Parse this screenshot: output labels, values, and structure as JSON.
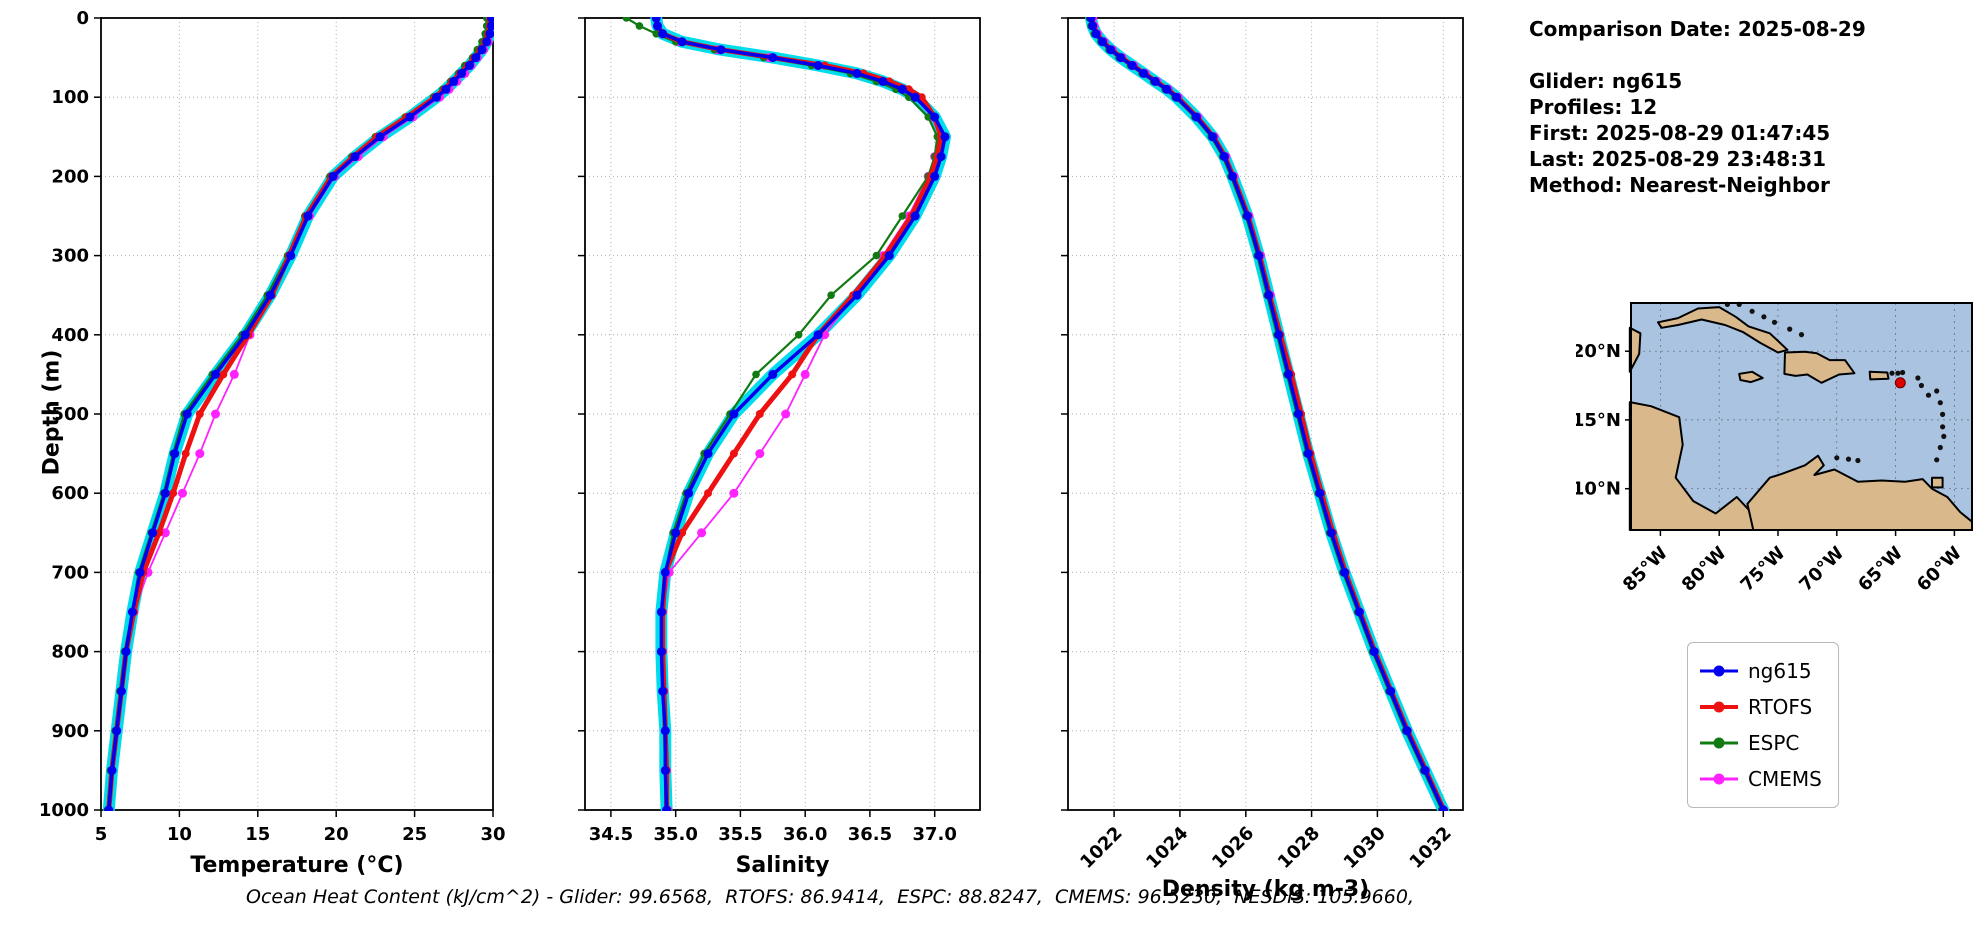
{
  "colors": {
    "ng615": "#0000ee",
    "rtofs": "#ee1111",
    "espc": "#117a11",
    "cmems": "#ff22ff",
    "glider_raw": "#00dcec",
    "map_ocean": "#aac3e0",
    "map_land": "#d9b98c",
    "map_marker": "#dd0000",
    "grid": "#b0b0b0"
  },
  "info_panel": {
    "comparison_date": "Comparison Date: 2025-08-29",
    "glider": "Glider: ng615",
    "profiles": "Profiles: 12",
    "first": "First: 2025-08-29 01:47:45",
    "last": "Last: 2025-08-29 23:48:31",
    "method": "Method: Nearest-Neighbor"
  },
  "legend": {
    "items": [
      {
        "label": "ng615",
        "color": "#0000ee"
      },
      {
        "label": "RTOFS",
        "color": "#ee1111"
      },
      {
        "label": "ESPC",
        "color": "#117a11"
      },
      {
        "label": "CMEMS",
        "color": "#ff22ff"
      }
    ]
  },
  "caption": "Ocean Heat Content (kJ/cm^2) - Glider: 99.6568,  RTOFS: 86.9414,  ESPC: 88.8247,  CMEMS: 96.5230,  NESDIS: 105.9660,",
  "map": {
    "lat_tick_labels": [
      "20°N",
      "15°N",
      "10°N"
    ],
    "lat_tick_values": [
      20,
      15,
      10
    ],
    "lon_tick_labels": [
      "85°W",
      "80°W",
      "75°W",
      "70°W",
      "65°W",
      "60°W"
    ],
    "lon_tick_values": [
      85,
      80,
      75,
      70,
      65,
      60
    ],
    "marker": {
      "lon_w": 64.6,
      "lat_n": 17.7
    }
  },
  "chart_data": [
    {
      "id": "temperature",
      "type": "line",
      "xlabel": "Temperature (°C)",
      "ylabel": "Depth (m)",
      "xlim": [
        5,
        30
      ],
      "ylim": [
        0,
        1000
      ],
      "y_inverted": true,
      "xticks": [
        5,
        10,
        15,
        20,
        25,
        30
      ],
      "xtick_labels": [
        "5",
        "10",
        "15",
        "20",
        "25",
        "30"
      ],
      "yticks": [
        0,
        100,
        200,
        300,
        400,
        500,
        600,
        700,
        800,
        900,
        1000
      ],
      "ytick_labels": [
        "0",
        "100",
        "200",
        "300",
        "400",
        "500",
        "600",
        "700",
        "800",
        "900",
        "1000"
      ],
      "depths": [
        0,
        10,
        20,
        30,
        40,
        50,
        60,
        70,
        80,
        90,
        100,
        125,
        150,
        175,
        200,
        250,
        300,
        350,
        400,
        450,
        500,
        550,
        600,
        650,
        700,
        750,
        800,
        850,
        900,
        950,
        1000
      ],
      "series": [
        {
          "name": "ng615",
          "values": [
            29.9,
            29.9,
            29.8,
            29.6,
            29.3,
            28.9,
            28.5,
            28.0,
            27.5,
            27.0,
            26.4,
            24.7,
            22.8,
            21.2,
            19.8,
            18.2,
            17.1,
            15.8,
            14.2,
            12.3,
            10.5,
            9.7,
            9.1,
            8.3,
            7.5,
            7.0,
            6.6,
            6.3,
            6.0,
            5.7,
            5.5
          ]
        },
        {
          "name": "RTOFS",
          "values": [
            29.8,
            29.8,
            29.7,
            29.5,
            29.2,
            28.8,
            28.4,
            27.9,
            27.4,
            26.9,
            26.3,
            24.5,
            22.6,
            21.1,
            19.7,
            18.1,
            17.0,
            15.9,
            14.4,
            12.8,
            11.3,
            10.4,
            9.6,
            8.7,
            7.7,
            7.1,
            6.6,
            6.3,
            6.0,
            5.7,
            5.5
          ]
        },
        {
          "name": "ESPC",
          "values": [
            29.6,
            29.6,
            29.5,
            29.3,
            29.0,
            28.7,
            28.2,
            27.8,
            27.3,
            26.8,
            26.2,
            24.4,
            22.5,
            21.0,
            19.6,
            18.0,
            16.9,
            15.6,
            14.0,
            12.1,
            10.3,
            9.6,
            9.0,
            8.2,
            7.4,
            7.0,
            6.5,
            6.2,
            5.9,
            5.6,
            5.4
          ]
        },
        {
          "name": "CMEMS",
          "values": [
            29.9,
            29.9,
            29.8,
            29.7,
            29.4,
            29.0,
            28.6,
            28.2,
            27.7,
            27.2,
            26.6,
            24.9,
            23.0,
            21.4,
            19.9,
            18.3,
            17.0,
            15.7,
            14.5,
            13.5,
            12.3,
            11.3,
            10.2,
            9.1,
            8.0,
            7.1,
            6.6,
            6.3,
            6.0,
            5.7,
            5.5
          ]
        }
      ]
    },
    {
      "id": "salinity",
      "type": "line",
      "xlabel": "Salinity",
      "ylabel": "",
      "xlim": [
        34.3,
        37.35
      ],
      "ylim": [
        0,
        1000
      ],
      "y_inverted": true,
      "xticks": [
        34.5,
        35.0,
        35.5,
        36.0,
        36.5,
        37.0
      ],
      "xtick_labels": [
        "34.5",
        "35.0",
        "35.5",
        "36.0",
        "36.5",
        "37.0"
      ],
      "yticks": [
        0,
        100,
        200,
        300,
        400,
        500,
        600,
        700,
        800,
        900,
        1000
      ],
      "ytick_labels": [],
      "depths": [
        0,
        10,
        20,
        30,
        40,
        50,
        60,
        70,
        80,
        90,
        100,
        125,
        150,
        175,
        200,
        250,
        300,
        350,
        400,
        450,
        500,
        550,
        600,
        650,
        700,
        750,
        800,
        850,
        900,
        950,
        1000
      ],
      "series": [
        {
          "name": "ng615",
          "values": [
            34.85,
            34.86,
            34.9,
            35.05,
            35.35,
            35.75,
            36.1,
            36.4,
            36.6,
            36.75,
            36.85,
            37.0,
            37.08,
            37.05,
            37.0,
            36.85,
            36.65,
            36.4,
            36.1,
            35.75,
            35.45,
            35.25,
            35.1,
            35.0,
            34.92,
            34.89,
            34.89,
            34.9,
            34.92,
            34.92,
            34.93
          ]
        },
        {
          "name": "RTOFS",
          "values": [
            34.85,
            34.86,
            34.9,
            35.05,
            35.35,
            35.75,
            36.15,
            36.45,
            36.65,
            36.8,
            36.9,
            37.0,
            37.05,
            37.02,
            36.97,
            36.82,
            36.62,
            36.37,
            36.1,
            35.9,
            35.65,
            35.45,
            35.25,
            35.05,
            34.92,
            34.9,
            34.9,
            34.91,
            34.92,
            34.93,
            34.93
          ]
        },
        {
          "name": "ESPC",
          "values": [
            34.62,
            34.72,
            34.85,
            35.0,
            35.3,
            35.68,
            36.05,
            36.35,
            36.55,
            36.7,
            36.8,
            36.95,
            37.02,
            37.0,
            36.95,
            36.75,
            36.55,
            36.2,
            35.95,
            35.62,
            35.42,
            35.22,
            35.08,
            34.98,
            34.92,
            34.9,
            34.9,
            34.91,
            34.92,
            34.93,
            34.94
          ]
        },
        {
          "name": "CMEMS",
          "values": [
            34.85,
            34.86,
            34.9,
            35.03,
            35.32,
            35.72,
            36.1,
            36.4,
            36.6,
            36.75,
            36.85,
            36.98,
            37.04,
            37.0,
            36.95,
            36.8,
            36.6,
            36.38,
            36.15,
            36.0,
            35.85,
            35.65,
            35.45,
            35.2,
            34.95,
            34.9,
            34.9,
            34.91,
            34.92,
            34.93,
            34.94
          ]
        }
      ]
    },
    {
      "id": "density",
      "type": "line",
      "xlabel": "Density (kg m-3)",
      "ylabel": "",
      "xlim": [
        1020.6,
        1032.6
      ],
      "ylim": [
        0,
        1000
      ],
      "y_inverted": true,
      "xticks": [
        1022,
        1024,
        1026,
        1028,
        1030,
        1032
      ],
      "xtick_labels": [
        "1022",
        "1024",
        "1026",
        "1028",
        "1030",
        "1032"
      ],
      "rotate_xtick_labels": true,
      "yticks": [
        0,
        100,
        200,
        300,
        400,
        500,
        600,
        700,
        800,
        900,
        1000
      ],
      "ytick_labels": [],
      "depths": [
        0,
        10,
        20,
        30,
        40,
        50,
        60,
        70,
        80,
        90,
        100,
        125,
        150,
        175,
        200,
        250,
        300,
        350,
        400,
        450,
        500,
        550,
        600,
        650,
        700,
        750,
        800,
        850,
        900,
        950,
        1000
      ],
      "series": [
        {
          "name": "ng615",
          "values": [
            1021.3,
            1021.35,
            1021.45,
            1021.65,
            1021.9,
            1022.2,
            1022.55,
            1022.9,
            1023.25,
            1023.6,
            1023.9,
            1024.5,
            1025.0,
            1025.35,
            1025.6,
            1026.05,
            1026.4,
            1026.7,
            1027.0,
            1027.3,
            1027.6,
            1027.9,
            1028.25,
            1028.6,
            1029.0,
            1029.45,
            1029.9,
            1030.4,
            1030.9,
            1031.45,
            1032.0
          ]
        },
        {
          "name": "RTOFS",
          "values": [
            1021.32,
            1021.37,
            1021.47,
            1021.67,
            1021.92,
            1022.22,
            1022.57,
            1022.92,
            1023.27,
            1023.62,
            1023.92,
            1024.52,
            1025.02,
            1025.37,
            1025.62,
            1026.07,
            1026.42,
            1026.72,
            1027.05,
            1027.38,
            1027.68,
            1027.97,
            1028.3,
            1028.65,
            1029.03,
            1029.47,
            1029.92,
            1030.42,
            1030.92,
            1031.47,
            1032.02
          ]
        },
        {
          "name": "ESPC",
          "values": [
            1021.25,
            1021.3,
            1021.4,
            1021.6,
            1021.85,
            1022.15,
            1022.5,
            1022.85,
            1023.2,
            1023.55,
            1023.85,
            1024.45,
            1024.95,
            1025.3,
            1025.55,
            1026.0,
            1026.35,
            1026.65,
            1026.95,
            1027.25,
            1027.55,
            1027.85,
            1028.2,
            1028.55,
            1028.95,
            1029.4,
            1029.85,
            1030.35,
            1030.85,
            1031.4,
            1031.95
          ]
        },
        {
          "name": "CMEMS",
          "values": [
            1021.35,
            1021.4,
            1021.5,
            1021.7,
            1021.95,
            1022.25,
            1022.6,
            1022.95,
            1023.3,
            1023.65,
            1023.95,
            1024.55,
            1025.05,
            1025.4,
            1025.65,
            1026.1,
            1026.45,
            1026.75,
            1027.03,
            1027.33,
            1027.63,
            1027.93,
            1028.28,
            1028.63,
            1029.02,
            1029.46,
            1029.91,
            1030.41,
            1030.91,
            1031.46,
            1032.01
          ]
        }
      ]
    }
  ]
}
